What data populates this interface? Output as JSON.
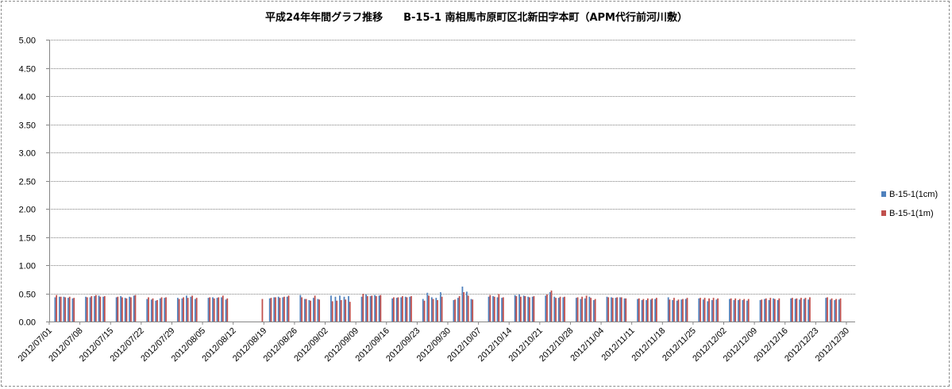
{
  "chart_data": {
    "type": "bar",
    "title": "平成24年年間グラフ推移　　B-15-1 南相馬市原町区北新田字本町（APM代行前河川敷）",
    "xlabel": "",
    "ylabel": "",
    "ylim": [
      0,
      5
    ],
    "yticks": [
      "5.00",
      "4.50",
      "4.00",
      "3.50",
      "3.00",
      "2.50",
      "2.00",
      "1.50",
      "1.00",
      "0.50",
      "0.00"
    ],
    "grid": true,
    "legend_position": "right",
    "x_start": "2012/07/01",
    "x_end": "2012/12/31",
    "x_tick_labels": [
      "2012/07/01",
      "2012/07/08",
      "2012/07/15",
      "2012/07/22",
      "2012/07/29",
      "2012/08/05",
      "2012/08/12",
      "2012/08/19",
      "2012/08/26",
      "2012/09/02",
      "2012/09/09",
      "2012/09/16",
      "2012/09/23",
      "2012/09/30",
      "2012/10/07",
      "2012/10/14",
      "2012/10/21",
      "2012/10/28",
      "2012/11/04",
      "2012/11/11",
      "2012/11/18",
      "2012/11/25",
      "2012/12/02",
      "2012/12/09",
      "2012/12/16",
      "2012/12/23",
      "2012/12/30"
    ],
    "series": [
      {
        "name": "B-15-1(1cm)",
        "color": "#4f81bd",
        "points": [
          [
            "2012/07/02",
            0.43
          ],
          [
            "2012/07/03",
            0.44
          ],
          [
            "2012/07/04",
            0.44
          ],
          [
            "2012/07/05",
            0.42
          ],
          [
            "2012/07/06",
            0.41
          ],
          [
            "2012/07/09",
            0.44
          ],
          [
            "2012/07/10",
            0.43
          ],
          [
            "2012/07/11",
            0.45
          ],
          [
            "2012/07/12",
            0.46
          ],
          [
            "2012/07/13",
            0.44
          ],
          [
            "2012/07/16",
            0.43
          ],
          [
            "2012/07/17",
            0.45
          ],
          [
            "2012/07/18",
            0.42
          ],
          [
            "2012/07/19",
            0.44
          ],
          [
            "2012/07/20",
            0.46
          ],
          [
            "2012/07/23",
            0.4
          ],
          [
            "2012/07/24",
            0.39
          ],
          [
            "2012/07/25",
            0.37
          ],
          [
            "2012/07/26",
            0.41
          ],
          [
            "2012/07/27",
            0.42
          ],
          [
            "2012/07/30",
            0.42
          ],
          [
            "2012/07/31",
            0.41
          ],
          [
            "2012/08/01",
            0.46
          ],
          [
            "2012/08/02",
            0.44
          ],
          [
            "2012/08/03",
            0.4
          ],
          [
            "2012/08/06",
            0.42
          ],
          [
            "2012/08/07",
            0.43
          ],
          [
            "2012/08/08",
            0.42
          ],
          [
            "2012/08/09",
            0.43
          ],
          [
            "2012/08/10",
            0.39
          ],
          [
            "2012/08/20",
            0.41
          ],
          [
            "2012/08/21",
            0.43
          ],
          [
            "2012/08/22",
            0.44
          ],
          [
            "2012/08/23",
            0.43
          ],
          [
            "2012/08/24",
            0.44
          ],
          [
            "2012/08/27",
            0.47
          ],
          [
            "2012/08/28",
            0.4
          ],
          [
            "2012/08/29",
            0.38
          ],
          [
            "2012/08/30",
            0.42
          ],
          [
            "2012/08/31",
            0.4
          ],
          [
            "2012/09/03",
            0.46
          ],
          [
            "2012/09/04",
            0.44
          ],
          [
            "2012/09/05",
            0.46
          ],
          [
            "2012/09/06",
            0.44
          ],
          [
            "2012/09/07",
            0.45
          ],
          [
            "2012/09/10",
            0.44
          ],
          [
            "2012/09/11",
            0.48
          ],
          [
            "2012/09/12",
            0.45
          ],
          [
            "2012/09/13",
            0.47
          ],
          [
            "2012/09/14",
            0.46
          ],
          [
            "2012/09/17",
            0.41
          ],
          [
            "2012/09/18",
            0.42
          ],
          [
            "2012/09/19",
            0.43
          ],
          [
            "2012/09/20",
            0.44
          ],
          [
            "2012/09/21",
            0.44
          ],
          [
            "2012/09/24",
            0.4
          ],
          [
            "2012/09/25",
            0.51
          ],
          [
            "2012/09/26",
            0.43
          ],
          [
            "2012/09/27",
            0.42
          ],
          [
            "2012/09/28",
            0.52
          ],
          [
            "2012/10/01",
            0.38
          ],
          [
            "2012/10/02",
            0.42
          ],
          [
            "2012/10/03",
            0.62
          ],
          [
            "2012/10/04",
            0.53
          ],
          [
            "2012/10/05",
            0.4
          ],
          [
            "2012/10/09",
            0.44
          ],
          [
            "2012/10/10",
            0.45
          ],
          [
            "2012/10/11",
            0.43
          ],
          [
            "2012/10/12",
            0.42
          ],
          [
            "2012/10/15",
            0.47
          ],
          [
            "2012/10/16",
            0.48
          ],
          [
            "2012/10/17",
            0.46
          ],
          [
            "2012/10/18",
            0.44
          ],
          [
            "2012/10/19",
            0.44
          ],
          [
            "2012/10/22",
            0.46
          ],
          [
            "2012/10/23",
            0.52
          ],
          [
            "2012/10/24",
            0.44
          ],
          [
            "2012/10/25",
            0.42
          ],
          [
            "2012/10/26",
            0.43
          ],
          [
            "2012/10/29",
            0.42
          ],
          [
            "2012/10/30",
            0.4
          ],
          [
            "2012/10/31",
            0.41
          ],
          [
            "2012/11/01",
            0.44
          ],
          [
            "2012/11/02",
            0.38
          ],
          [
            "2012/11/05",
            0.44
          ],
          [
            "2012/11/06",
            0.43
          ],
          [
            "2012/11/07",
            0.42
          ],
          [
            "2012/11/08",
            0.43
          ],
          [
            "2012/11/09",
            0.41
          ],
          [
            "2012/11/12",
            0.4
          ],
          [
            "2012/11/13",
            0.38
          ],
          [
            "2012/11/14",
            0.38
          ],
          [
            "2012/11/15",
            0.39
          ],
          [
            "2012/11/16",
            0.4
          ],
          [
            "2012/11/19",
            0.43
          ],
          [
            "2012/11/20",
            0.38
          ],
          [
            "2012/11/21",
            0.37
          ],
          [
            "2012/11/22",
            0.39
          ],
          [
            "2012/11/23",
            0.4
          ],
          [
            "2012/11/26",
            0.41
          ],
          [
            "2012/11/27",
            0.39
          ],
          [
            "2012/11/28",
            0.36
          ],
          [
            "2012/11/29",
            0.38
          ],
          [
            "2012/11/30",
            0.39
          ],
          [
            "2012/12/03",
            0.4
          ],
          [
            "2012/12/04",
            0.38
          ],
          [
            "2012/12/05",
            0.38
          ],
          [
            "2012/12/06",
            0.38
          ],
          [
            "2012/12/07",
            0.37
          ],
          [
            "2012/12/10",
            0.38
          ],
          [
            "2012/12/11",
            0.4
          ],
          [
            "2012/12/12",
            0.38
          ],
          [
            "2012/12/13",
            0.41
          ],
          [
            "2012/12/14",
            0.38
          ],
          [
            "2012/12/17",
            0.41
          ],
          [
            "2012/12/18",
            0.4
          ],
          [
            "2012/12/19",
            0.39
          ],
          [
            "2012/12/20",
            0.4
          ],
          [
            "2012/12/21",
            0.39
          ],
          [
            "2012/12/25",
            0.42
          ],
          [
            "2012/12/26",
            0.39
          ],
          [
            "2012/12/27",
            0.38
          ],
          [
            "2012/12/28",
            0.39
          ]
        ]
      },
      {
        "name": "B-15-1(1m)",
        "color": "#c0504d",
        "points": [
          [
            "2012/07/02",
            0.47
          ],
          [
            "2012/07/03",
            0.44
          ],
          [
            "2012/07/04",
            0.43
          ],
          [
            "2012/07/05",
            0.44
          ],
          [
            "2012/07/06",
            0.42
          ],
          [
            "2012/07/09",
            0.43
          ],
          [
            "2012/07/10",
            0.45
          ],
          [
            "2012/07/11",
            0.47
          ],
          [
            "2012/07/12",
            0.44
          ],
          [
            "2012/07/13",
            0.45
          ],
          [
            "2012/07/16",
            0.44
          ],
          [
            "2012/07/17",
            0.43
          ],
          [
            "2012/07/18",
            0.41
          ],
          [
            "2012/07/19",
            0.43
          ],
          [
            "2012/07/20",
            0.47
          ],
          [
            "2012/07/23",
            0.43
          ],
          [
            "2012/07/24",
            0.41
          ],
          [
            "2012/07/25",
            0.38
          ],
          [
            "2012/07/26",
            0.43
          ],
          [
            "2012/07/27",
            0.43
          ],
          [
            "2012/07/30",
            0.4
          ],
          [
            "2012/07/31",
            0.43
          ],
          [
            "2012/08/01",
            0.42
          ],
          [
            "2012/08/02",
            0.46
          ],
          [
            "2012/08/03",
            0.42
          ],
          [
            "2012/08/06",
            0.43
          ],
          [
            "2012/08/07",
            0.41
          ],
          [
            "2012/08/08",
            0.43
          ],
          [
            "2012/08/09",
            0.46
          ],
          [
            "2012/08/10",
            0.41
          ],
          [
            "2012/08/18",
            0.4
          ],
          [
            "2012/08/20",
            0.42
          ],
          [
            "2012/08/21",
            0.43
          ],
          [
            "2012/08/22",
            0.42
          ],
          [
            "2012/08/23",
            0.44
          ],
          [
            "2012/08/24",
            0.46
          ],
          [
            "2012/08/27",
            0.43
          ],
          [
            "2012/08/28",
            0.4
          ],
          [
            "2012/08/29",
            0.37
          ],
          [
            "2012/08/30",
            0.46
          ],
          [
            "2012/08/31",
            0.39
          ],
          [
            "2012/09/03",
            0.36
          ],
          [
            "2012/09/04",
            0.37
          ],
          [
            "2012/09/05",
            0.38
          ],
          [
            "2012/09/06",
            0.39
          ],
          [
            "2012/09/07",
            0.35
          ],
          [
            "2012/09/10",
            0.49
          ],
          [
            "2012/09/11",
            0.45
          ],
          [
            "2012/09/12",
            0.46
          ],
          [
            "2012/09/13",
            0.45
          ],
          [
            "2012/09/14",
            0.47
          ],
          [
            "2012/09/17",
            0.43
          ],
          [
            "2012/09/18",
            0.43
          ],
          [
            "2012/09/19",
            0.45
          ],
          [
            "2012/09/20",
            0.43
          ],
          [
            "2012/09/21",
            0.45
          ],
          [
            "2012/09/24",
            0.37
          ],
          [
            "2012/09/25",
            0.46
          ],
          [
            "2012/09/26",
            0.4
          ],
          [
            "2012/09/27",
            0.38
          ],
          [
            "2012/09/28",
            0.44
          ],
          [
            "2012/10/01",
            0.39
          ],
          [
            "2012/10/02",
            0.45
          ],
          [
            "2012/10/03",
            0.52
          ],
          [
            "2012/10/04",
            0.46
          ],
          [
            "2012/10/05",
            0.39
          ],
          [
            "2012/10/09",
            0.47
          ],
          [
            "2012/10/10",
            0.44
          ],
          [
            "2012/10/11",
            0.49
          ],
          [
            "2012/10/12",
            0.43
          ],
          [
            "2012/10/15",
            0.45
          ],
          [
            "2012/10/16",
            0.44
          ],
          [
            "2012/10/17",
            0.45
          ],
          [
            "2012/10/18",
            0.43
          ],
          [
            "2012/10/19",
            0.45
          ],
          [
            "2012/10/22",
            0.48
          ],
          [
            "2012/10/23",
            0.55
          ],
          [
            "2012/10/24",
            0.42
          ],
          [
            "2012/10/25",
            0.44
          ],
          [
            "2012/10/26",
            0.44
          ],
          [
            "2012/10/29",
            0.43
          ],
          [
            "2012/10/30",
            0.44
          ],
          [
            "2012/10/31",
            0.46
          ],
          [
            "2012/11/01",
            0.42
          ],
          [
            "2012/11/02",
            0.4
          ],
          [
            "2012/11/05",
            0.43
          ],
          [
            "2012/11/06",
            0.42
          ],
          [
            "2012/11/07",
            0.43
          ],
          [
            "2012/11/08",
            0.43
          ],
          [
            "2012/11/09",
            0.41
          ],
          [
            "2012/11/12",
            0.41
          ],
          [
            "2012/11/13",
            0.4
          ],
          [
            "2012/11/14",
            0.41
          ],
          [
            "2012/11/15",
            0.41
          ],
          [
            "2012/11/16",
            0.42
          ],
          [
            "2012/11/19",
            0.39
          ],
          [
            "2012/11/20",
            0.42
          ],
          [
            "2012/11/21",
            0.39
          ],
          [
            "2012/11/22",
            0.4
          ],
          [
            "2012/11/23",
            0.42
          ],
          [
            "2012/11/26",
            0.42
          ],
          [
            "2012/11/27",
            0.42
          ],
          [
            "2012/11/28",
            0.41
          ],
          [
            "2012/11/29",
            0.42
          ],
          [
            "2012/11/30",
            0.41
          ],
          [
            "2012/12/03",
            0.41
          ],
          [
            "2012/12/04",
            0.41
          ],
          [
            "2012/12/05",
            0.4
          ],
          [
            "2012/12/06",
            0.4
          ],
          [
            "2012/12/07",
            0.4
          ],
          [
            "2012/12/10",
            0.39
          ],
          [
            "2012/12/11",
            0.41
          ],
          [
            "2012/12/12",
            0.42
          ],
          [
            "2012/12/13",
            0.4
          ],
          [
            "2012/12/14",
            0.41
          ],
          [
            "2012/12/17",
            0.42
          ],
          [
            "2012/12/18",
            0.41
          ],
          [
            "2012/12/19",
            0.42
          ],
          [
            "2012/12/20",
            0.42
          ],
          [
            "2012/12/21",
            0.43
          ],
          [
            "2012/12/25",
            0.43
          ],
          [
            "2012/12/26",
            0.41
          ],
          [
            "2012/12/27",
            0.4
          ],
          [
            "2012/12/28",
            0.41
          ]
        ]
      }
    ]
  }
}
